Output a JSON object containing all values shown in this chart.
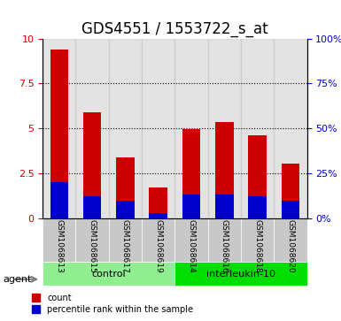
{
  "title": "GDS4551 / 1553722_s_at",
  "samples": [
    "GSM1068613",
    "GSM1068615",
    "GSM1068617",
    "GSM1068619",
    "GSM1068614",
    "GSM1068616",
    "GSM1068618",
    "GSM1068620"
  ],
  "count_values": [
    9.4,
    5.9,
    3.4,
    1.7,
    4.95,
    5.35,
    4.6,
    3.05
  ],
  "percentile_values": [
    2.0,
    1.2,
    1.0,
    0.3,
    1.3,
    1.3,
    1.2,
    1.0
  ],
  "groups": [
    {
      "label": "control",
      "start": 0,
      "end": 4,
      "color": "#90ee90"
    },
    {
      "label": "interleukin-10",
      "start": 4,
      "end": 8,
      "color": "#00dd00"
    }
  ],
  "bar_color_red": "#cc0000",
  "bar_color_blue": "#0000cc",
  "bar_bg_color": "#d0d0d0",
  "ylim_left": [
    0,
    10
  ],
  "ylim_right": [
    0,
    100
  ],
  "yticks_left": [
    0,
    2.5,
    5,
    7.5,
    10
  ],
  "yticks_right": [
    0,
    25,
    50,
    75,
    100
  ],
  "ytick_labels_left": [
    "0",
    "2.5",
    "5",
    "7.5",
    "10"
  ],
  "ytick_labels_right": [
    "0%",
    "25%",
    "50%",
    "75%",
    "100%"
  ],
  "grid_color": "#000000",
  "agent_label": "agent",
  "legend_count": "count",
  "legend_percentile": "percentile rank within the sample",
  "title_fontsize": 12,
  "tick_fontsize": 8,
  "label_area_bg": "#c8c8c8"
}
